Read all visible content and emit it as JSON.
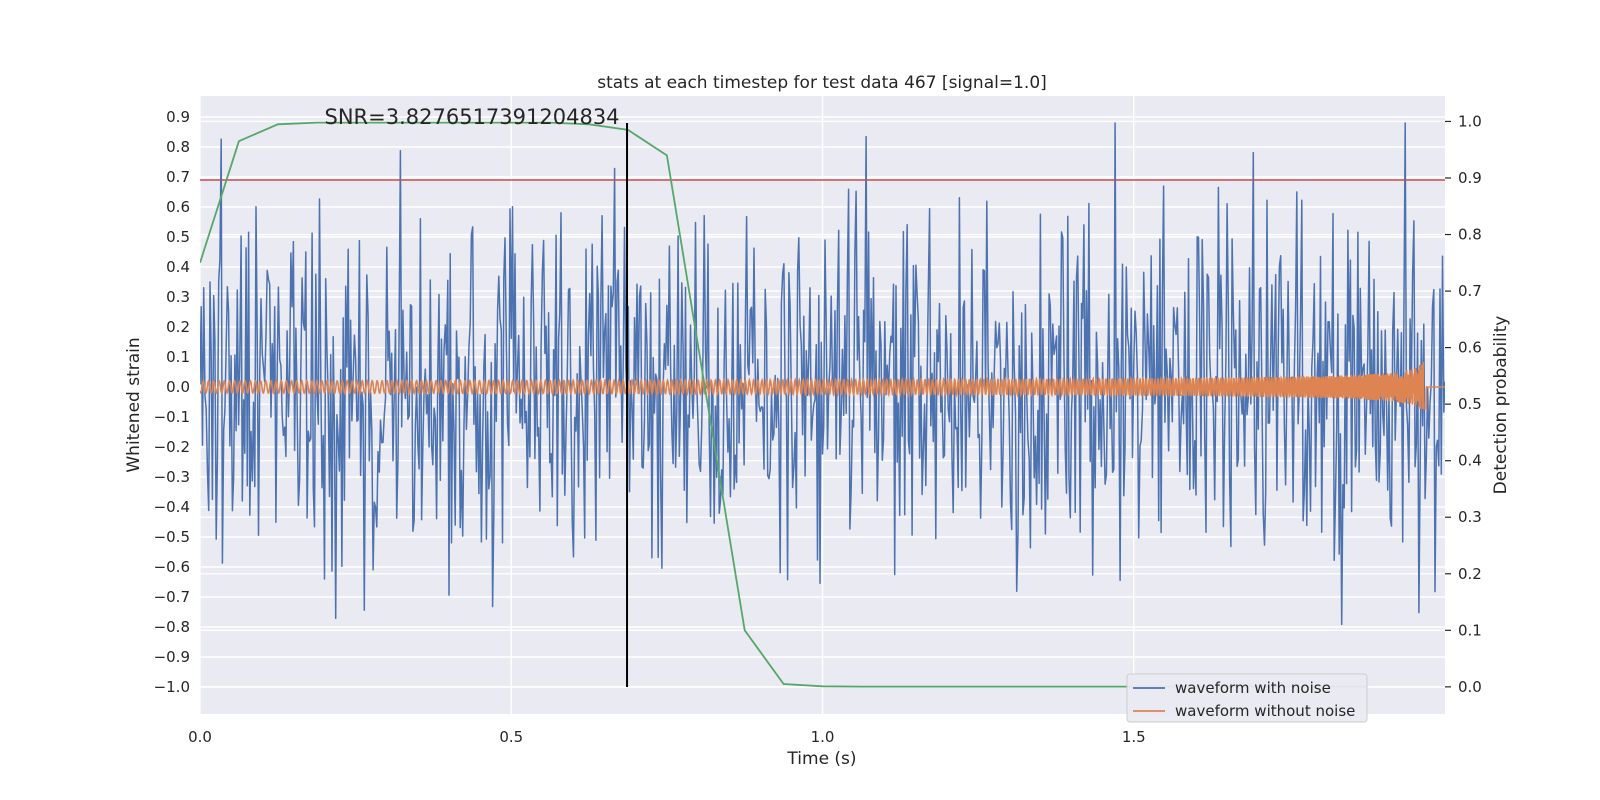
{
  "chart_data": {
    "type": "line",
    "title": "stats at each timestep for test data 467 [signal=1.0]",
    "xlabel": "Time (s)",
    "ylabel_left": "Whitened strain",
    "ylabel_right": "Detection probability",
    "xlim": [
      0.0,
      2.0
    ],
    "ylim_left": [
      -1.09,
      0.97
    ],
    "ylim_right": [
      -0.048,
      1.045
    ],
    "x_ticks": [
      "0.0",
      "0.5",
      "1.0",
      "1.5"
    ],
    "x_tick_values": [
      0.0,
      0.5,
      1.0,
      1.5
    ],
    "y_ticks_left": [
      "0.9",
      "0.8",
      "0.7",
      "0.6",
      "0.5",
      "0.4",
      "0.3",
      "0.2",
      "0.1",
      "0.0",
      "−0.1",
      "−0.2",
      "−0.3",
      "−0.4",
      "−0.5",
      "−0.6",
      "−0.7",
      "−0.8",
      "−0.9",
      "−1.0"
    ],
    "y_tick_values_left": [
      0.9,
      0.8,
      0.7,
      0.6,
      0.5,
      0.4,
      0.3,
      0.2,
      0.1,
      0.0,
      -0.1,
      -0.2,
      -0.3,
      -0.4,
      -0.5,
      -0.6,
      -0.7,
      -0.8,
      -0.9,
      -1.0
    ],
    "y_ticks_right": [
      "1.0",
      "0.9",
      "0.8",
      "0.7",
      "0.6",
      "0.5",
      "0.4",
      "0.3",
      "0.2",
      "0.1",
      "0.0"
    ],
    "y_tick_values_right": [
      1.0,
      0.9,
      0.8,
      0.7,
      0.6,
      0.5,
      0.4,
      0.3,
      0.2,
      0.1,
      0.0
    ],
    "grid": true,
    "annotation": "SNR=3.8276517391204834",
    "annotation_x": 0.2,
    "threshold_left_y": 0.69,
    "marker_x": 0.686,
    "marker_y_range": [
      -1.0,
      0.88
    ],
    "series": [
      {
        "name": "waveform with noise",
        "color": "#4c72b0",
        "axis": "left",
        "description": "dense noise samples between about -1.0 and 0.88",
        "x_range": [
          0.0,
          2.0
        ],
        "sample_count": 1000,
        "amplitude_rms": 0.3
      },
      {
        "name": "waveform without noise",
        "color": "#dd8452",
        "axis": "left",
        "description": "chirp oscillation around 0.0 growing in amplitude and frequency until about 1.97 s",
        "x_range": [
          0.0,
          1.97
        ],
        "amplitude_start": 0.02,
        "amplitude_end": 0.12
      },
      {
        "name": "detection probability",
        "color": "#55a868",
        "axis": "right",
        "x": [
          0.0,
          0.0625,
          0.125,
          0.1875,
          0.25,
          0.3125,
          0.375,
          0.4375,
          0.5,
          0.5625,
          0.625,
          0.6875,
          0.75,
          0.8125,
          0.875,
          0.9375,
          1.0,
          1.0625,
          1.125,
          1.1875,
          1.25,
          1.3125,
          1.375,
          1.4375,
          1.5,
          1.5625,
          1.625,
          1.6875,
          1.75,
          1.8125,
          1.875
        ],
        "y": [
          0.75,
          0.965,
          0.995,
          0.998,
          0.998,
          0.998,
          0.998,
          0.998,
          0.998,
          0.998,
          0.995,
          0.985,
          0.94,
          0.52,
          0.1,
          0.005,
          0.001,
          0.0005,
          0.0005,
          0.0005,
          0.0005,
          0.0005,
          0.0005,
          0.0005,
          0.0005,
          0.0005,
          0.0005,
          0.0005,
          0.0005,
          0.0005,
          0.0005
        ]
      }
    ],
    "threshold_color": "#c44e52",
    "marker_color": "#000000",
    "legend": {
      "placement": "lower-right",
      "entries": [
        "waveform with noise",
        "waveform without noise"
      ]
    }
  }
}
